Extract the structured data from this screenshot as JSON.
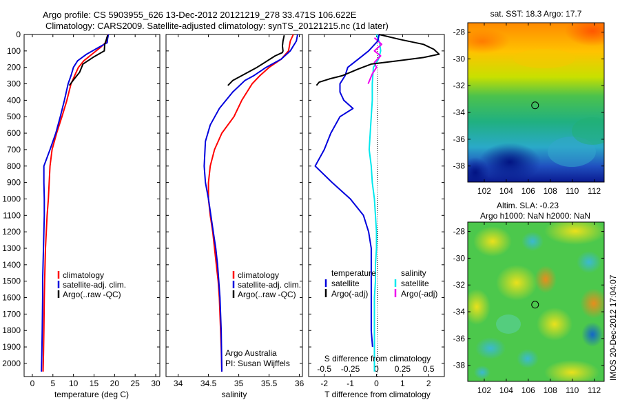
{
  "header": {
    "line1": "Argo profile: CS 5903955_626 13-Dec-2012 20121219_278 33.471S 106.622E",
    "line2": "Climatology: CARS2009. Satellite-adjusted climatology: synTS_20121215.nc (1d later)"
  },
  "colors": {
    "climatology": "#ff0000",
    "satellite": "#0000dd",
    "argo": "#000000",
    "sat_salinity": "#00e8ee",
    "argo_adj_salinity": "#ee00ee"
  },
  "panels": {
    "temperature": {
      "xlabel": "temperature (deg C)",
      "xticks": [
        "0",
        "5",
        "10",
        "15",
        "20",
        "25",
        "30"
      ],
      "legend": [
        "climatology",
        "satellite-adj. clim.",
        "Argo(..raw -QC)"
      ]
    },
    "salinity": {
      "xlabel": "salinity",
      "xticks": [
        "34",
        "34.5",
        "35",
        "35.5",
        "36"
      ],
      "legend": [
        "climatology",
        "satellite-adj. clim.",
        "Argo(..raw -QC)"
      ],
      "note1": "Argo Australia",
      "note2": "PI: Susan Wijffels"
    },
    "difference": {
      "xlabel": "T difference from climatology",
      "xticks": [
        "-2",
        "-1",
        "0",
        "1",
        "2"
      ],
      "s_label": "S difference from climatology",
      "s_ticks": [
        "-0.5",
        "-0.25",
        "0",
        "0.25",
        "0.5"
      ],
      "legend_temperature": {
        "title": "temperature",
        "items": [
          "satellite",
          "Argo(-adj)"
        ]
      },
      "legend_salinity": {
        "title": "salinity",
        "items": [
          "satellite",
          "Argo(-adj)"
        ]
      }
    }
  },
  "depth_ticks": [
    "0",
    "100",
    "200",
    "300",
    "400",
    "500",
    "600",
    "700",
    "800",
    "900",
    "1000",
    "1100",
    "1200",
    "1300",
    "1400",
    "1500",
    "1600",
    "1700",
    "1800",
    "1900",
    "2000"
  ],
  "maps": {
    "sst": {
      "title": "sat. SST: 18.3  Argo: 17.7",
      "yticks": [
        "-28",
        "-30",
        "-32",
        "-34",
        "-36",
        "-38"
      ],
      "xticks": [
        "102",
        "104",
        "106",
        "108",
        "110",
        "112"
      ]
    },
    "sla": {
      "title1": "Altim. SLA: -0.23",
      "title2": "Argo h1000: NaN  h2000: NaN",
      "yticks": [
        "-28",
        "-30",
        "-32",
        "-34",
        "-36",
        "-38"
      ],
      "xticks": [
        "102",
        "104",
        "106",
        "108",
        "110",
        "112"
      ]
    },
    "argo_position": {
      "lon": 106.622,
      "lat": -33.471
    }
  },
  "footer": {
    "stamp": "IMOS 20-Dec-2012 17:04:07"
  },
  "chart_data": [
    {
      "type": "line",
      "title": "",
      "xlabel": "temperature (deg C)",
      "ylabel": "",
      "xlim": [
        -2,
        31
      ],
      "ylim": [
        2080,
        0
      ],
      "series": [
        {
          "name": "climatology",
          "x": [
            18.4,
            18.2,
            17.8,
            16.5,
            14.5,
            12.5,
            11.2,
            10.3,
            9.4,
            8.4,
            7.2,
            5.9,
            4.8,
            4.3,
            4.1,
            3.9,
            3.6,
            3.4,
            3.2,
            3.1,
            3.0,
            2.9,
            2.8,
            2.7,
            2.6
          ],
          "y": [
            0,
            25,
            50,
            80,
            120,
            160,
            200,
            250,
            300,
            400,
            500,
            600,
            700,
            800,
            900,
            1000,
            1100,
            1200,
            1300,
            1400,
            1500,
            1600,
            1800,
            1950,
            2050
          ]
        },
        {
          "name": "satellite-adj. clim.",
          "x": [
            18.5,
            18.3,
            18.2,
            16.0,
            13.2,
            11.0,
            10.0,
            9.4,
            8.7,
            7.8,
            6.8,
            5.7,
            4.3,
            2.8,
            2.8,
            2.9,
            2.9,
            2.8,
            2.7,
            2.6,
            2.5,
            2.5,
            2.4,
            2.3,
            2.2
          ],
          "y": [
            0,
            25,
            50,
            80,
            120,
            160,
            200,
            250,
            300,
            400,
            500,
            600,
            700,
            800,
            900,
            1000,
            1100,
            1200,
            1300,
            1400,
            1500,
            1600,
            1800,
            1950,
            2050
          ]
        },
        {
          "name": "Argo(..raw -QC)",
          "x": [
            18.3,
            18.0,
            17.6,
            17.5,
            14.7,
            12.3,
            11.5,
            10.2,
            9.0
          ],
          "y": [
            5,
            30,
            60,
            100,
            140,
            180,
            230,
            270,
            310
          ]
        }
      ]
    },
    {
      "type": "line",
      "title": "",
      "xlabel": "salinity",
      "ylabel": "",
      "xlim": [
        33.8,
        36.05
      ],
      "ylim": [
        2080,
        0
      ],
      "series": [
        {
          "name": "climatology",
          "x": [
            35.9,
            35.85,
            35.82,
            35.7,
            35.5,
            35.35,
            35.22,
            35.05,
            34.92,
            34.72,
            34.6,
            34.53,
            34.5,
            34.5,
            34.53,
            34.57,
            34.6,
            34.63,
            34.66,
            34.68,
            34.69,
            34.7,
            34.71,
            34.72
          ],
          "y": [
            0,
            40,
            100,
            150,
            200,
            250,
            300,
            400,
            500,
            600,
            700,
            800,
            900,
            1000,
            1100,
            1200,
            1300,
            1400,
            1500,
            1600,
            1700,
            1800,
            1900,
            2050
          ]
        },
        {
          "name": "satellite-adj. clim.",
          "x": [
            35.97,
            35.95,
            35.85,
            35.7,
            35.45,
            35.25,
            35.1,
            34.9,
            34.68,
            34.53,
            34.45,
            34.43,
            34.45,
            34.5,
            34.54,
            34.58,
            34.62,
            34.65,
            34.67,
            34.69,
            34.7,
            34.71,
            34.72
          ],
          "y": [
            0,
            40,
            100,
            150,
            200,
            250,
            280,
            350,
            450,
            550,
            650,
            800,
            900,
            1000,
            1100,
            1200,
            1300,
            1400,
            1500,
            1600,
            1700,
            1800,
            2050
          ]
        },
        {
          "name": "Argo(..raw -QC)",
          "x": [
            35.75,
            35.73,
            35.72,
            35.73,
            35.72,
            35.6,
            35.3,
            35.05,
            34.9,
            34.82
          ],
          "y": [
            5,
            40,
            70,
            100,
            110,
            130,
            200,
            250,
            280,
            310
          ]
        }
      ]
    },
    {
      "type": "line",
      "title": "",
      "xlabel": "T difference from climatology",
      "ylabel": "S difference from climatology",
      "xlim": [
        -2.6,
        2.6
      ],
      "ylim": [
        2080,
        0
      ],
      "series": [
        {
          "name": "satellite",
          "x": [
            0.1,
            0.05,
            -0.3,
            -0.7,
            -1.1,
            -1.2,
            -1.4,
            -1.4,
            -1.25,
            -0.9,
            -1.4,
            -1.75,
            -2.0,
            -2.35,
            -1.7,
            -1.0,
            -0.5,
            -0.3,
            -0.2,
            -0.2,
            -0.2,
            -0.2,
            -0.2,
            -0.2,
            -0.15
          ],
          "y": [
            0,
            40,
            100,
            150,
            200,
            250,
            300,
            350,
            400,
            450,
            500,
            600,
            700,
            800,
            900,
            1000,
            1100,
            1200,
            1300,
            1400,
            1500,
            1600,
            1700,
            1800,
            1900
          ]
        },
        {
          "name": "Argo(-adj)",
          "x": [
            0.1,
            0.9,
            1.8,
            2.2,
            2.4,
            1.8,
            0.8,
            -0.2,
            -0.7,
            -1.3,
            -1.8,
            -2.2,
            -2.3
          ],
          "y": [
            0,
            30,
            60,
            90,
            120,
            140,
            160,
            180,
            210,
            250,
            270,
            290,
            310
          ]
        }
      ]
    },
    {
      "type": "line",
      "title": "",
      "xlabel": "",
      "ylabel": "S difference from climatology",
      "xlim": [
        -0.65,
        0.65
      ],
      "ylim": [
        2080,
        0
      ],
      "series": [
        {
          "name": "satellite",
          "x": [
            0.0,
            0.03,
            0.04,
            0.02,
            -0.03,
            -0.04,
            -0.04,
            -0.05,
            -0.06,
            -0.07,
            -0.05,
            -0.04,
            -0.02,
            -0.01,
            0.0,
            0.0,
            -0.01,
            -0.01,
            -0.02,
            -0.02,
            -0.02,
            -0.02
          ],
          "y": [
            0,
            50,
            100,
            150,
            200,
            300,
            400,
            500,
            600,
            700,
            800,
            900,
            1000,
            1100,
            1200,
            1300,
            1400,
            1500,
            1600,
            1700,
            1800,
            2050
          ]
        },
        {
          "name": "Argo(-adj)",
          "x": [
            -0.02,
            0.05,
            -0.02,
            0.04,
            -0.02,
            0.0,
            -0.04,
            -0.08
          ],
          "y": [
            20,
            60,
            100,
            130,
            170,
            200,
            240,
            300
          ]
        }
      ]
    }
  ]
}
